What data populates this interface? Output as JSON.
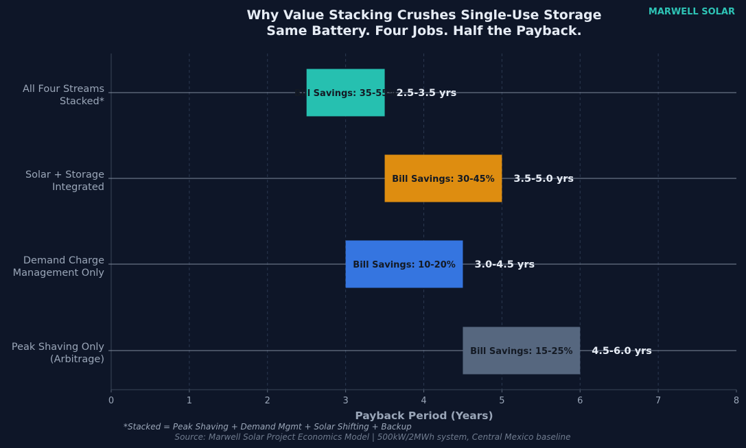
{
  "brand": "MARWELL SOLAR",
  "footnote": "*Stacked = Peak Shaving + Demand Mgmt + Solar Shifting + Backup",
  "source": "Source: Marwell Solar Project Economics Model | 500kW/2MWh system, Central Mexico baseline",
  "chart_data": {
    "type": "bar",
    "orientation": "horizontal-range",
    "title": "Why Value Stacking Crushes Single-Use Storage",
    "subtitle": "Same Battery. Four Jobs. Half the Payback.",
    "xlabel": "Payback Period (Years)",
    "ylabel": "",
    "xlim": [
      0,
      8
    ],
    "xticks": [
      "0",
      "1",
      "2",
      "3",
      "4",
      "5",
      "6",
      "7",
      "8"
    ],
    "grid": "vertical-dashed",
    "categories": [
      {
        "line1": "All Four Streams",
        "line2": "Stacked*"
      },
      {
        "line1": "Solar + Storage",
        "line2": "Integrated"
      },
      {
        "line1": "Demand Charge",
        "line2": "Management Only"
      },
      {
        "line1": "Peak Shaving Only",
        "line2": "(Arbitrage)"
      }
    ],
    "bars": [
      {
        "start": 2.5,
        "end": 3.5,
        "color": "#26c0b0",
        "bar_label": "Bill Savings: 35-55%",
        "range_label": "2.5-3.5 yrs"
      },
      {
        "start": 3.5,
        "end": 5.0,
        "color": "#de8d10",
        "bar_label": "Bill Savings: 30-45%",
        "range_label": "3.5-5.0 yrs"
      },
      {
        "start": 3.0,
        "end": 4.5,
        "color": "#3575e0",
        "bar_label": "Bill Savings: 10-20%",
        "range_label": "3.0-4.5 yrs"
      },
      {
        "start": 4.5,
        "end": 6.0,
        "color": "#56677f",
        "bar_label": "Bill Savings: 15-25%",
        "range_label": "4.5-6.0 yrs"
      }
    ]
  }
}
